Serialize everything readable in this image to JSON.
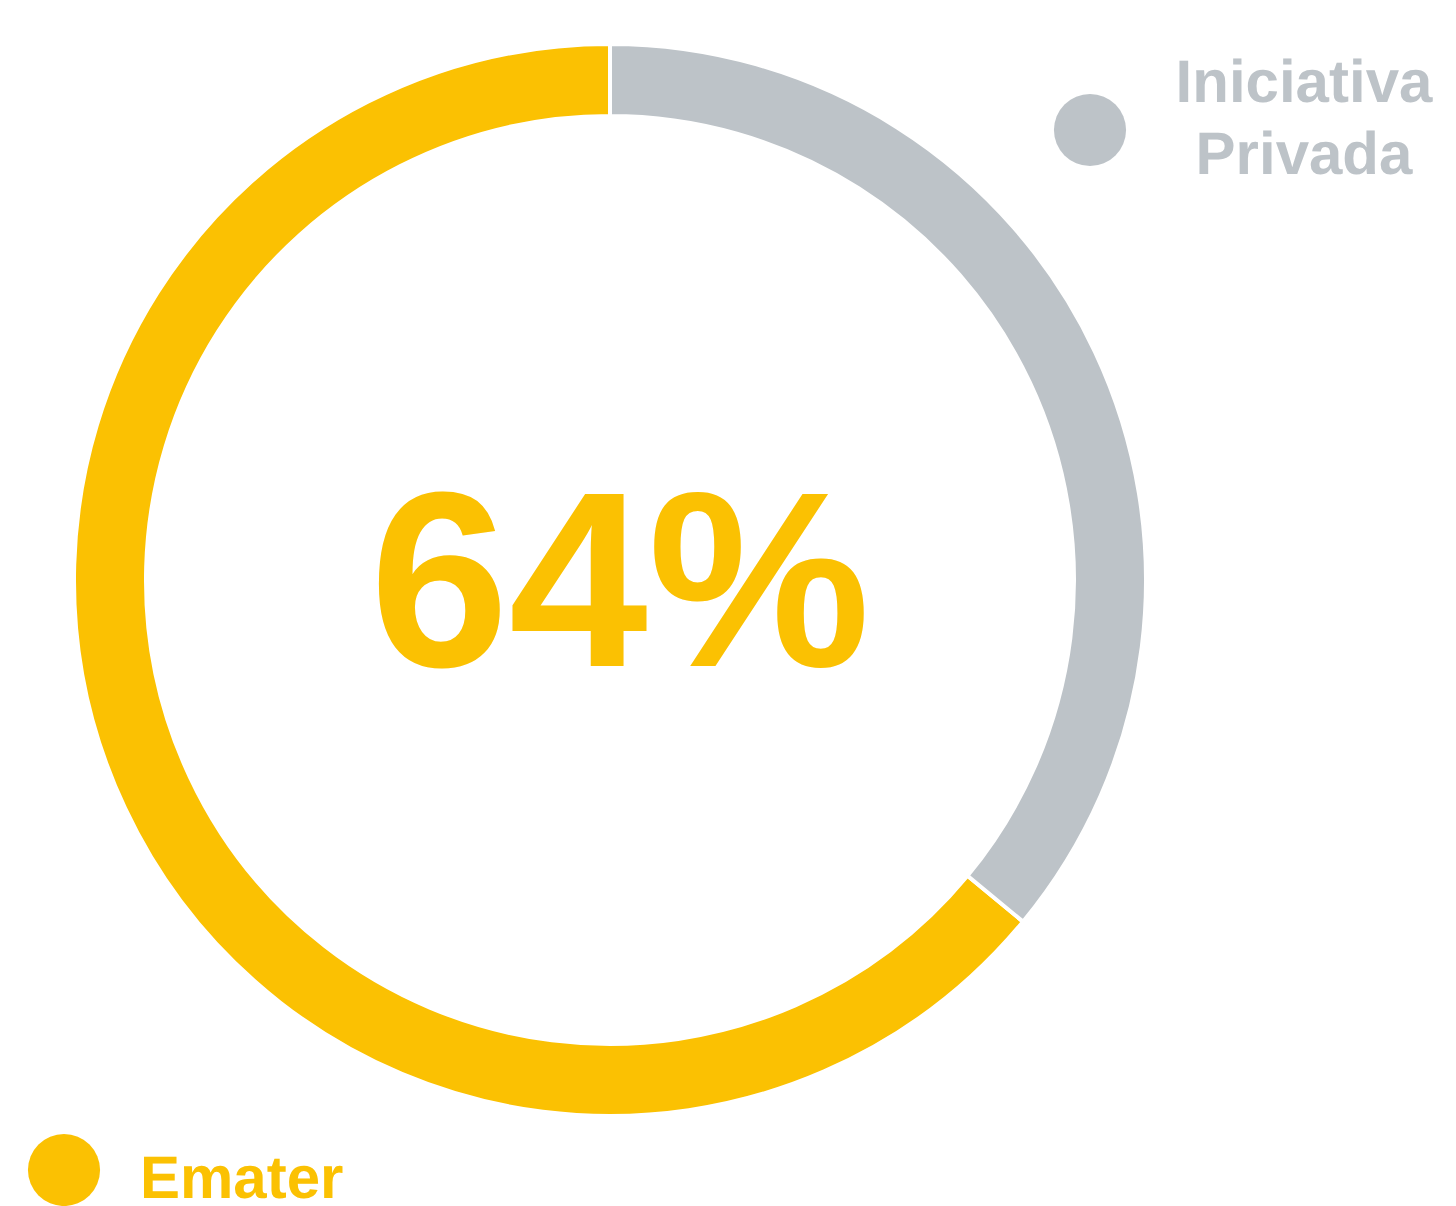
{
  "chart_data": {
    "type": "donut",
    "categories": [
      "Emater",
      "Iniciativa Privada"
    ],
    "values": [
      64,
      36
    ],
    "colors": [
      "#fbc102",
      "#bdc3c8"
    ],
    "annotations": [
      "64%"
    ],
    "legend": "bottom right"
  }
}
